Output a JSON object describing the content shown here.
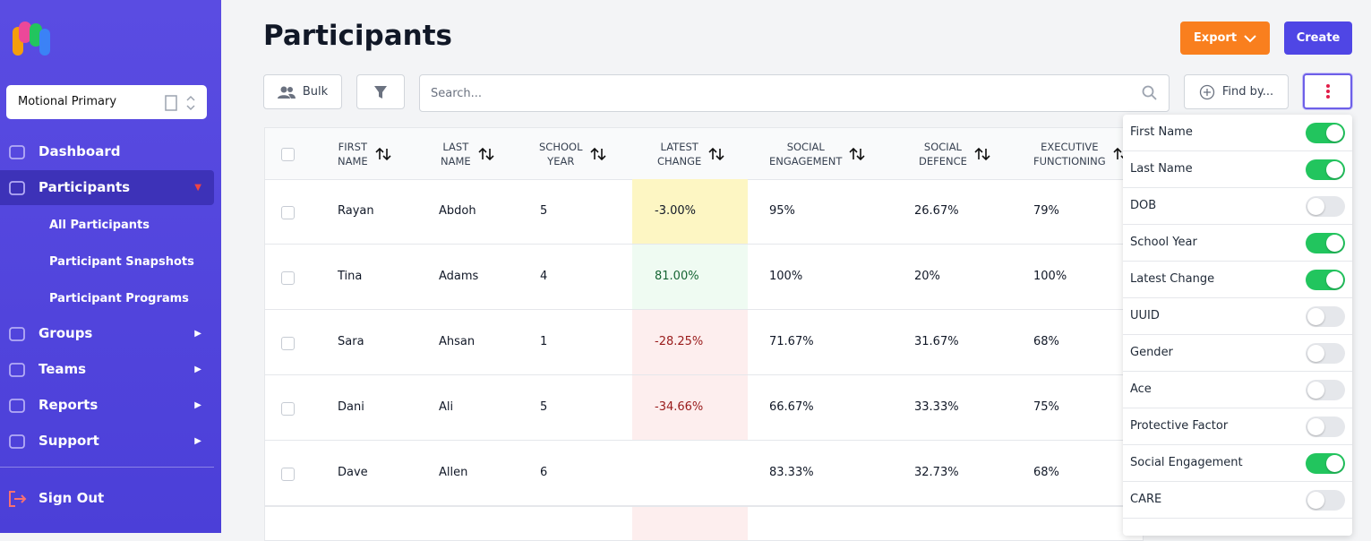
{
  "sidebar": {
    "org": "Motional Primary",
    "nav": [
      "Dashboard",
      "Participants",
      "Groups",
      "Teams",
      "Reports",
      "Support"
    ],
    "active": 1,
    "subnav": [
      "All Participants",
      "Participant Snapshots",
      "Participant Programs"
    ],
    "sign_out": "Sign Out"
  },
  "header": {
    "title": "Participants",
    "export": "Export",
    "create": "Create"
  },
  "toolbar": {
    "bulk": "Bulk",
    "search_placeholder": "Search...",
    "find_by": "Find by..."
  },
  "table": {
    "columns": [
      [
        "FIRST",
        "NAME"
      ],
      [
        "LAST",
        "NAME"
      ],
      [
        "SCHOOL",
        "YEAR"
      ],
      [
        "LATEST",
        "CHANGE"
      ],
      [
        "SOCIAL",
        "ENGAGEMENT"
      ],
      [
        "SOCIAL",
        "DEFENCE"
      ],
      [
        "EXECUTIVE",
        "FUNCTIONING"
      ]
    ],
    "rows": [
      {
        "cells": [
          "Rayan",
          "Abdoh",
          5,
          "-3.00%",
          "95%",
          "26.67%",
          "79%"
        ],
        "change_tone": "warning"
      },
      {
        "cells": [
          "Tina",
          "Adams",
          4,
          "81.00%",
          "100%",
          "20%",
          "100%"
        ],
        "change_tone": "positive"
      },
      {
        "cells": [
          "Sara",
          "Ahsan",
          1,
          "-28.25%",
          "71.67%",
          "31.67%",
          "68%"
        ],
        "change_tone": "negative"
      },
      {
        "cells": [
          "Dani",
          "Ali",
          5,
          "-34.66%",
          "66.67%",
          "33.33%",
          "75%"
        ],
        "change_tone": "negative"
      },
      {
        "cells": [
          "Dave",
          "Allen",
          6,
          null,
          "83.33%",
          "32.73%",
          "68%"
        ],
        "change_tone": null
      }
    ]
  },
  "column_panel": [
    {
      "label": "First Name",
      "on": true
    },
    {
      "label": "Last Name",
      "on": true
    },
    {
      "label": "DOB",
      "on": false
    },
    {
      "label": "School Year",
      "on": true
    },
    {
      "label": "Latest Change",
      "on": true
    },
    {
      "label": "UUID",
      "on": false
    },
    {
      "label": "Gender",
      "on": false
    },
    {
      "label": "Ace",
      "on": false
    },
    {
      "label": "Protective Factor",
      "on": false
    },
    {
      "label": "Social Engagement",
      "on": true
    },
    {
      "label": "CARE",
      "on": false
    }
  ]
}
